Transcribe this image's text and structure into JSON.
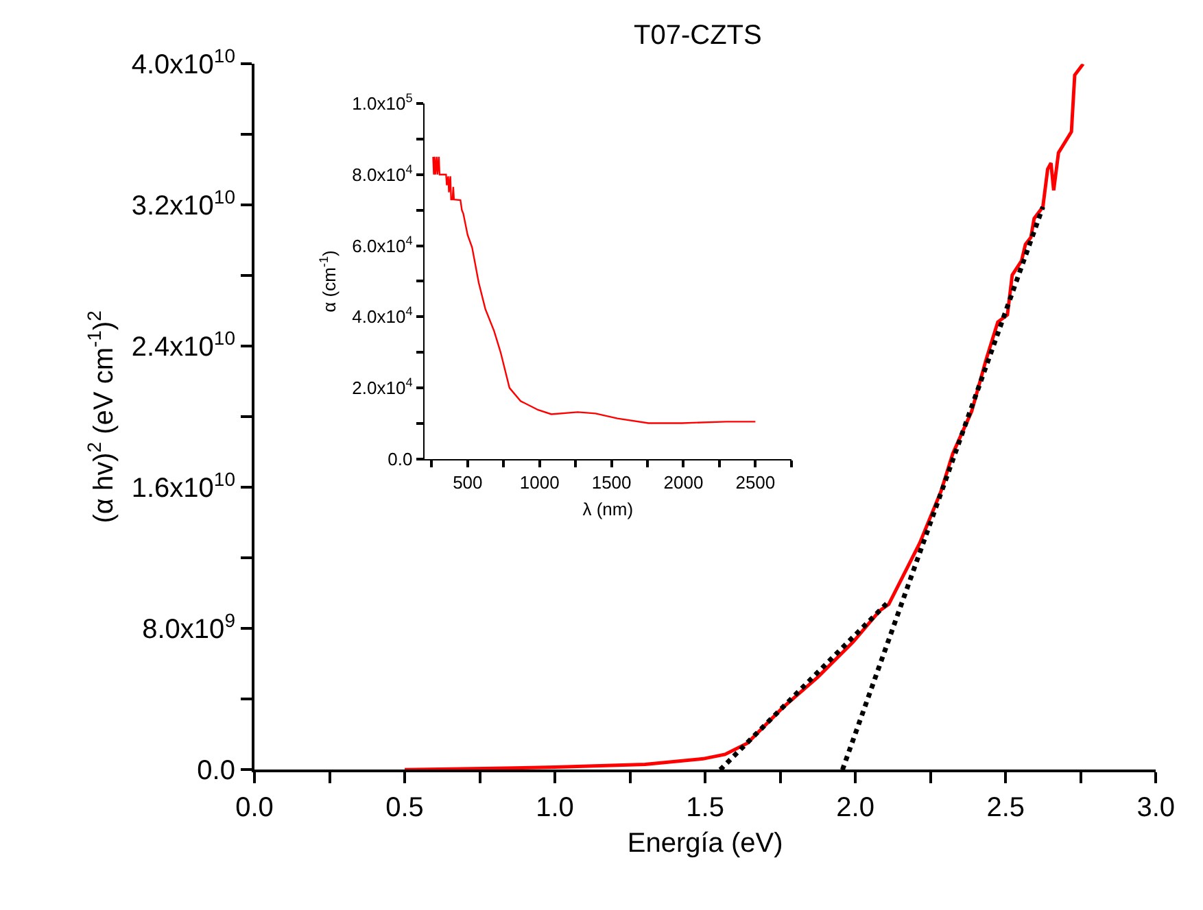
{
  "chart_data": [
    {
      "type": "line",
      "title": "T07-CZTS",
      "xlabel": "Energía (eV)",
      "ylabel": "(α hv)$^{2}$ (eV cm$^{-1}$)$^{2}$",
      "xlim": [
        0,
        3
      ],
      "xticks": [
        {
          "value": 0,
          "label": "0.0"
        },
        {
          "value": 0.25,
          "label": null
        },
        {
          "value": 0.5,
          "label": "0.5"
        },
        {
          "value": 0.75,
          "label": null
        },
        {
          "value": 1,
          "label": "1.0"
        },
        {
          "value": 1.25,
          "label": null
        },
        {
          "value": 1.5,
          "label": "1.5"
        },
        {
          "value": 1.75,
          "label": null
        },
        {
          "value": 2,
          "label": "2.0"
        },
        {
          "value": 2.25,
          "label": null
        },
        {
          "value": 2.5,
          "label": "2.5"
        },
        {
          "value": 2.75,
          "label": null
        },
        {
          "value": 3,
          "label": "3.0"
        }
      ],
      "ylim": [
        0,
        40000000000.0
      ],
      "yticks": [
        {
          "value": 0,
          "label": "0.0"
        },
        {
          "value": 4000000000.0,
          "label": null
        },
        {
          "value": 8000000000.0,
          "label": "8.0x10$^{9}$"
        },
        {
          "value": 12000000000.0,
          "label": null
        },
        {
          "value": 16000000000.0,
          "label": "1.6x10$^{10}$"
        },
        {
          "value": 20000000000.0,
          "label": null
        },
        {
          "value": 24000000000.0,
          "label": "2.4x10$^{10}$"
        },
        {
          "value": 28000000000.0,
          "label": null
        },
        {
          "value": 32000000000.0,
          "label": "3.2x10$^{10}$"
        },
        {
          "value": 36000000000.0,
          "label": null
        },
        {
          "value": 40000000000.0,
          "label": "4.0x10$^{10}$"
        }
      ],
      "series": [
        {
          "color": "#ff0000",
          "line_style": "solid",
          "x": [
            0.5,
            0.8,
            1.0,
            1.3,
            1.493,
            1.566,
            1.64,
            1.757,
            1.875,
            1.993,
            2.08,
            2.111,
            2.214,
            2.285,
            2.324,
            2.387,
            2.435,
            2.474,
            2.506,
            2.522,
            2.553,
            2.566,
            2.584,
            2.595,
            2.624,
            2.64,
            2.651,
            2.66,
            2.676,
            2.719,
            2.73,
            2.758
          ],
          "values": [
            0,
            80000000.0,
            150000000.0,
            300000000.0,
            620000000.0,
            870000000.0,
            1500000000.0,
            3500000000.0,
            5250000000.0,
            7250000000.0,
            9000000000.0,
            9380000000.0,
            12840000000.0,
            15780000000.0,
            17910000000.0,
            20310000000.0,
            23240000000.0,
            25370000000.0,
            25780000000.0,
            28040000000.0,
            28840000000.0,
            29780000000.0,
            30170000000.0,
            31240000000.0,
            31900000000.0,
            34040000000.0,
            34380000000.0,
            32840000000.0,
            34970000000.0,
            36160000000.0,
            39370000000.0,
            40000000000.0
          ]
        },
        {
          "color": "#000000",
          "line_style": "dotted",
          "x": [
            1.55,
            2.11
          ],
          "values": [
            0,
            9520000000.0
          ]
        },
        {
          "color": "#000000",
          "line_style": "dotted",
          "x": [
            1.957,
            2.624
          ],
          "values": [
            0,
            31900000000.0
          ]
        }
      ]
    },
    {
      "type": "line",
      "xlabel": "λ (nm)",
      "ylabel": "α (cm$^{-1}$)",
      "xlim": [
        200,
        2750
      ],
      "xticks": [
        {
          "value": 250,
          "label": null
        },
        {
          "value": 500,
          "label": "500"
        },
        {
          "value": 750,
          "label": null
        },
        {
          "value": 1000,
          "label": "1000"
        },
        {
          "value": 1250,
          "label": null
        },
        {
          "value": 1500,
          "label": "1500"
        },
        {
          "value": 1750,
          "label": null
        },
        {
          "value": 2000,
          "label": "2000"
        },
        {
          "value": 2250,
          "label": null
        },
        {
          "value": 2500,
          "label": "2500"
        },
        {
          "value": 2750,
          "label": null
        }
      ],
      "ylim": [
        0,
        100000.0
      ],
      "yticks": [
        {
          "value": 0,
          "label": "0.0"
        },
        {
          "value": 10000.0,
          "label": null
        },
        {
          "value": 20000.0,
          "label": "2.0x10$^{4}$"
        },
        {
          "value": 30000.0,
          "label": null
        },
        {
          "value": 40000.0,
          "label": "4.0x10$^{4}$"
        },
        {
          "value": 50000.0,
          "label": null
        },
        {
          "value": 60000.0,
          "label": "6.0x10$^{4}$"
        },
        {
          "value": 70000.0,
          "label": null
        },
        {
          "value": 80000.0,
          "label": "8.0x10$^{4}$"
        },
        {
          "value": 90000.0,
          "label": null
        },
        {
          "value": 100000.0,
          "label": "1.0x10$^{5}$"
        }
      ],
      "series": [
        {
          "color": "#ff0000",
          "line_style": "solid",
          "x": [
            260,
            265,
            270,
            275,
            285,
            290,
            300,
            305,
            310,
            350,
            355,
            365,
            370,
            380,
            385,
            395,
            400,
            405,
            450,
            460,
            470,
            480,
            500,
            531,
            577,
            623,
            684,
            730,
            791,
            868,
            990,
            1082,
            1266,
            1388,
            1541,
            1756,
            1991,
            2297,
            2500
          ],
          "values": [
            85000,
            80000,
            85000,
            80000,
            85000,
            80000,
            85000,
            80000,
            80000,
            80000,
            77000,
            79500,
            75000,
            79500,
            73000,
            73000,
            76500,
            73000,
            72800,
            70000,
            69000,
            67000,
            63000,
            59500,
            49600,
            42200,
            36000,
            29900,
            20000,
            16300,
            13800,
            12600,
            13200,
            12800,
            11400,
            10100,
            10100,
            10500,
            10500
          ]
        }
      ]
    }
  ]
}
